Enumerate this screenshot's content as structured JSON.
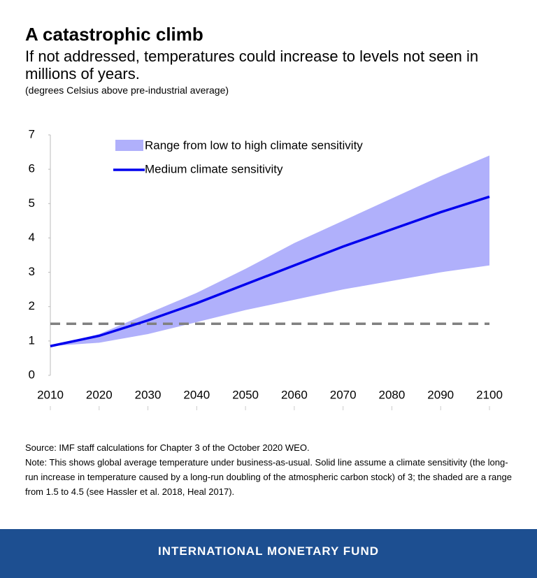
{
  "chart_data": {
    "type": "line",
    "title": "A catastrophic climb",
    "subtitle": "If not addressed, temperatures could increase to levels not seen in millions of years.",
    "units": "(degrees Celsius above pre-industrial average)",
    "x": [
      2010,
      2020,
      2030,
      2040,
      2050,
      2060,
      2070,
      2080,
      2090,
      2100
    ],
    "series": [
      {
        "name": "Range from low to high climate sensitivity",
        "color": "#b0b0fb",
        "low": [
          0.85,
          0.95,
          1.2,
          1.55,
          1.9,
          2.2,
          2.5,
          2.75,
          3.0,
          3.2
        ],
        "high": [
          0.85,
          1.2,
          1.8,
          2.4,
          3.1,
          3.85,
          4.5,
          5.15,
          5.8,
          6.4
        ]
      },
      {
        "name": "Medium climate sensitivity",
        "color": "#0000ee",
        "values": [
          0.85,
          1.15,
          1.6,
          2.1,
          2.65,
          3.2,
          3.75,
          4.25,
          4.75,
          5.2
        ]
      }
    ],
    "reference_line": {
      "value": 1.5,
      "color": "#808080"
    },
    "xlim": [
      2010,
      2100
    ],
    "xticks": [
      2010,
      2020,
      2030,
      2040,
      2050,
      2060,
      2070,
      2080,
      2090,
      2100
    ],
    "ylim": [
      0,
      7
    ],
    "yticks": [
      0,
      1,
      2,
      3,
      4,
      5,
      6,
      7
    ],
    "legend": "top-left"
  },
  "source": "Source: IMF staff calculations for Chapter 3 of the October 2020 WEO.",
  "note": "Note: This shows global average temperature under business-as-usual.  Solid line assume a climate sensitivity (the long-run increase in temperature caused by a long-run doubling of the atmospheric carbon stock) of 3; the shaded are a range from 1.5 to 4.5 (see Hassler et al. 2018, Heal 2017).",
  "footer": "INTERNATIONAL MONETARY FUND"
}
